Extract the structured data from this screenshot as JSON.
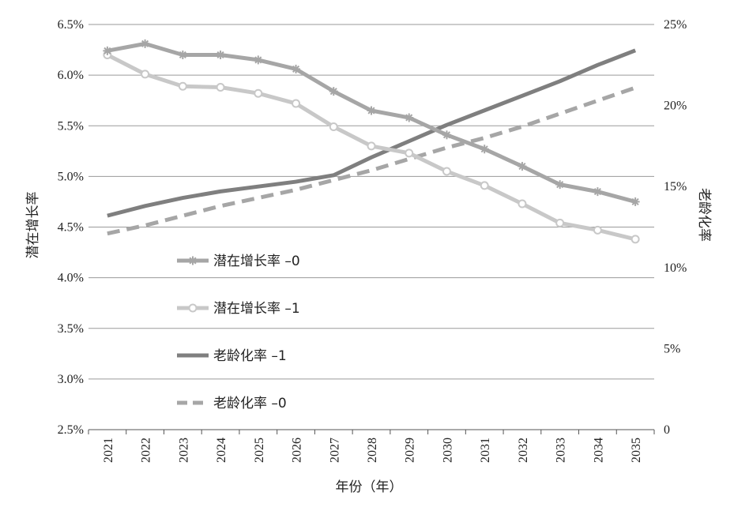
{
  "chart_data": {
    "type": "line",
    "x": [
      "2021",
      "2022",
      "2023",
      "2024",
      "2025",
      "2026",
      "2027",
      "2028",
      "2029",
      "2030",
      "2031",
      "2032",
      "2033",
      "2034",
      "2035"
    ],
    "xlabel": "年份（年）",
    "ylabel_left": "潜在增长率",
    "ylabel_right": "老龄化率",
    "ylim_left": [
      2.5,
      6.5
    ],
    "ylim_right": [
      0,
      25
    ],
    "left_ticks": [
      "2.5%",
      "3.0%",
      "3.5%",
      "4.0%",
      "4.5%",
      "5.0%",
      "5.5%",
      "6.0%",
      "6.5%"
    ],
    "right_ticks": [
      "0",
      "5%",
      "10%",
      "15%",
      "20%",
      "25%"
    ],
    "grid": true,
    "legend_position": "left-center",
    "series": [
      {
        "name": "潜在增长率 –0",
        "axis": "left",
        "color": "#a6a6a6",
        "marker": "star",
        "dash": false,
        "values": [
          6.24,
          6.31,
          6.2,
          6.2,
          6.15,
          6.06,
          5.84,
          5.65,
          5.58,
          5.41,
          5.27,
          5.1,
          4.92,
          4.85,
          4.75
        ]
      },
      {
        "name": "潜在增长率 –1",
        "axis": "left",
        "color": "#c8c8c8",
        "marker": "circle",
        "dash": false,
        "values": [
          6.2,
          6.01,
          5.89,
          5.88,
          5.82,
          5.72,
          5.49,
          5.3,
          5.23,
          5.05,
          4.91,
          4.73,
          4.54,
          4.47,
          4.38
        ]
      },
      {
        "name": "老龄化率 –1",
        "axis": "right",
        "color": "#7f7f7f",
        "marker": "none",
        "dash": false,
        "values": [
          13.2,
          13.8,
          14.3,
          14.7,
          15.0,
          15.3,
          15.7,
          16.8,
          17.8,
          18.8,
          19.7,
          20.6,
          21.5,
          22.5,
          23.4
        ]
      },
      {
        "name": "老龄化率 –0",
        "axis": "right",
        "color": "#a6a6a6",
        "marker": "none",
        "dash": true,
        "values": [
          12.1,
          12.6,
          13.2,
          13.8,
          14.3,
          14.8,
          15.4,
          16.0,
          16.7,
          17.4,
          18.0,
          18.7,
          19.5,
          20.3,
          21.1
        ]
      }
    ]
  }
}
